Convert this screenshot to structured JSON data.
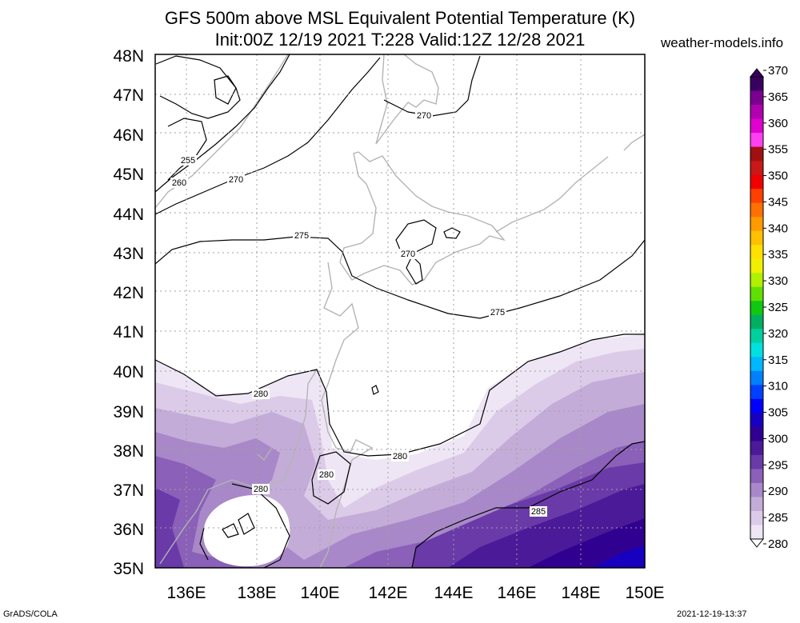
{
  "header": {
    "title": "GFS 500m above MSL Equivalent Potential Temperature (K)",
    "subtitle": "Init:00Z 12/19 2021 T:228 Valid:12Z 12/28 2021",
    "site": "weather-models.info"
  },
  "footer": {
    "left": "GrADS/COLA",
    "right": "2021-12-19-13:37"
  },
  "axes": {
    "lat_labels": [
      "48N",
      "47N",
      "46N",
      "45N",
      "44N",
      "43N",
      "42N",
      "41N",
      "40N",
      "39N",
      "38N",
      "37N",
      "36N",
      "35N"
    ],
    "lon_labels": [
      "136E",
      "138E",
      "140E",
      "142E",
      "144E",
      "146E",
      "148E",
      "150E"
    ]
  },
  "contour_labels": [
    "255",
    "260",
    "270",
    "270",
    "270",
    "275",
    "275",
    "280",
    "280",
    "280",
    "280",
    "285"
  ],
  "colorbar": {
    "labels": [
      "370",
      "365",
      "360",
      "355",
      "350",
      "345",
      "340",
      "335",
      "330",
      "325",
      "320",
      "315",
      "310",
      "305",
      "300",
      "295",
      "290",
      "285",
      "280"
    ],
    "colors": [
      "#3a0060",
      "#7a0090",
      "#b000b0",
      "#e000d0",
      "#ff40f0",
      "#a01010",
      "#c81818",
      "#f00000",
      "#ff4000",
      "#ff7000",
      "#ff9a00",
      "#ffc000",
      "#ffe000",
      "#f0f000",
      "#b0f000",
      "#60e000",
      "#10c810",
      "#00b060",
      "#00d0a0",
      "#00e0e0",
      "#00b8ff",
      "#0080ff",
      "#0040ff",
      "#0000ff",
      "#1800c0",
      "#300090",
      "#4a1a98",
      "#6a3aa8",
      "#8a60b8",
      "#a888c8",
      "#c4acd8",
      "#dccbe8",
      "#efe6f5"
    ]
  }
}
